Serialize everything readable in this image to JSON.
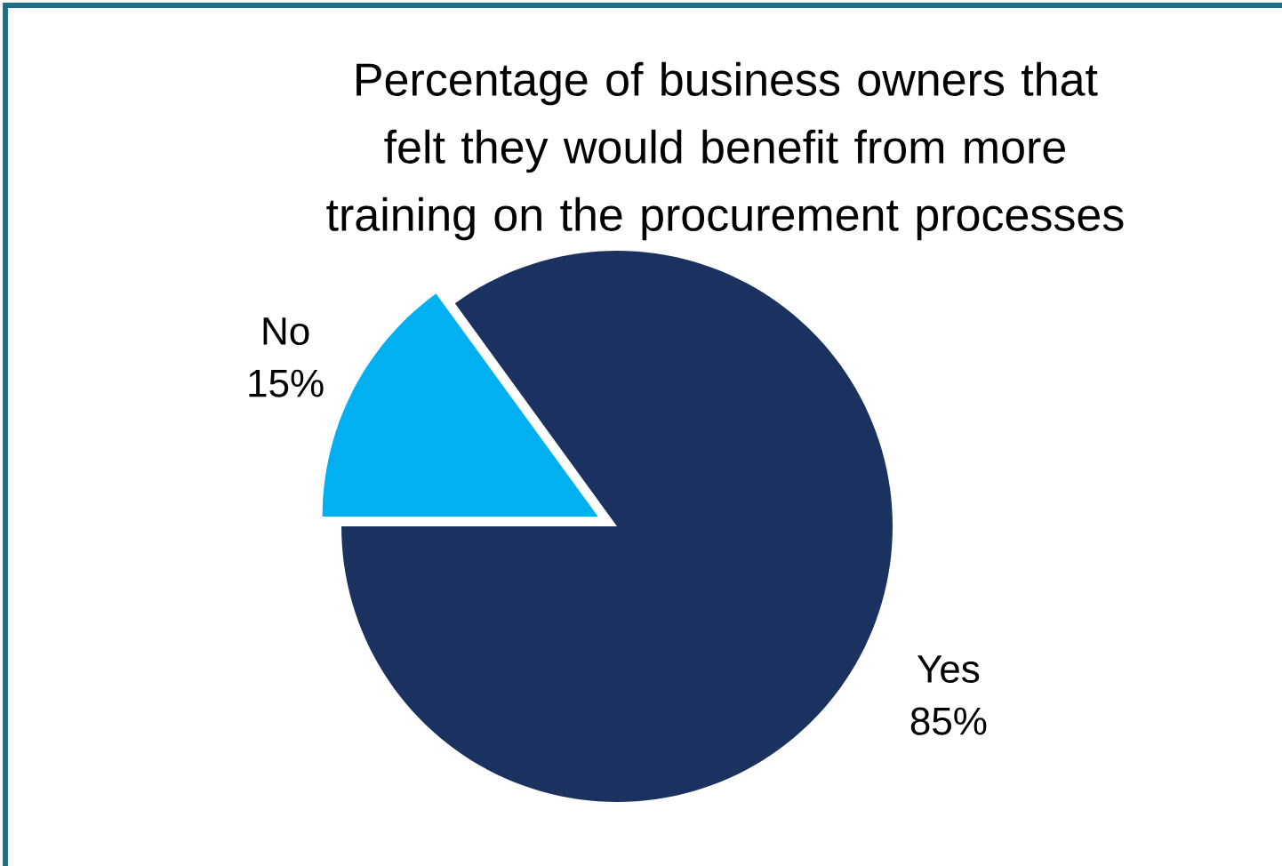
{
  "chart_data": {
    "type": "pie",
    "title": "Percentage of business owners that felt they would benefit from more training on the procurement processes",
    "categories": [
      "No",
      "Yes"
    ],
    "values": [
      15,
      85
    ],
    "value_labels": [
      "15%",
      "85%"
    ],
    "colors": [
      "#00b0f0",
      "#1b3260"
    ]
  }
}
